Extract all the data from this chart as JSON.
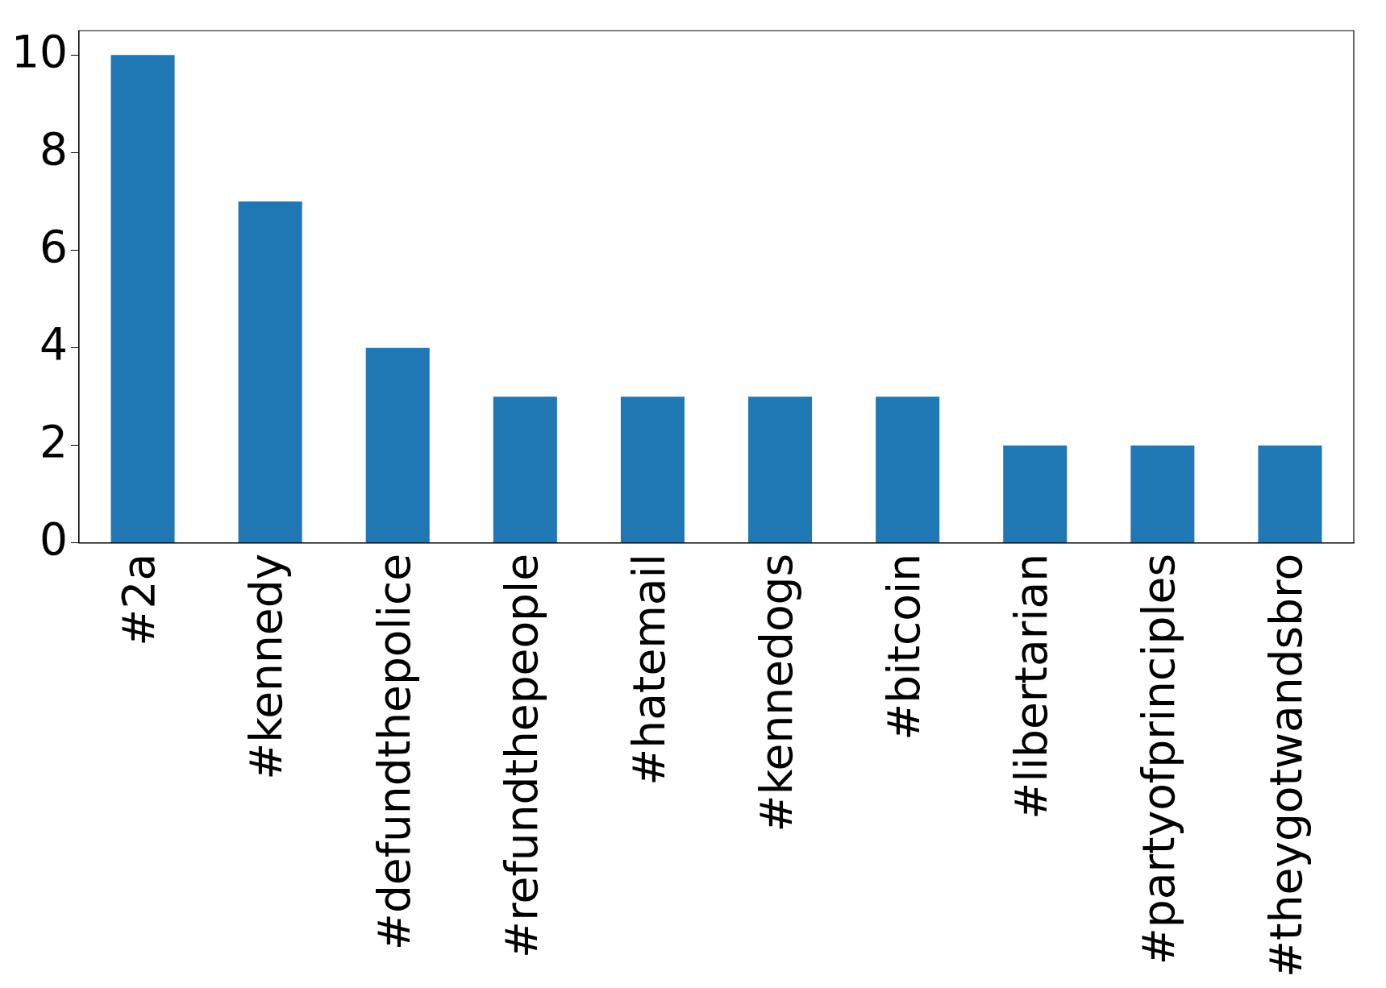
{
  "chart_data": {
    "type": "bar",
    "categories": [
      "#2a",
      "#kennedy",
      "#defundthepolice",
      "#refundthepeople",
      "#hatemail",
      "#kennedogs",
      "#bitcoin",
      "#libertarian",
      "#partyofprinciples",
      "#theygotwandsbro"
    ],
    "values": [
      10,
      7,
      4,
      3,
      3,
      3,
      3,
      2,
      2,
      2
    ],
    "color": "#1f77b4",
    "ylim": [
      0,
      10.5
    ],
    "yticks": [
      0,
      2,
      4,
      6,
      8,
      10
    ],
    "grid": false,
    "legend": false
  }
}
